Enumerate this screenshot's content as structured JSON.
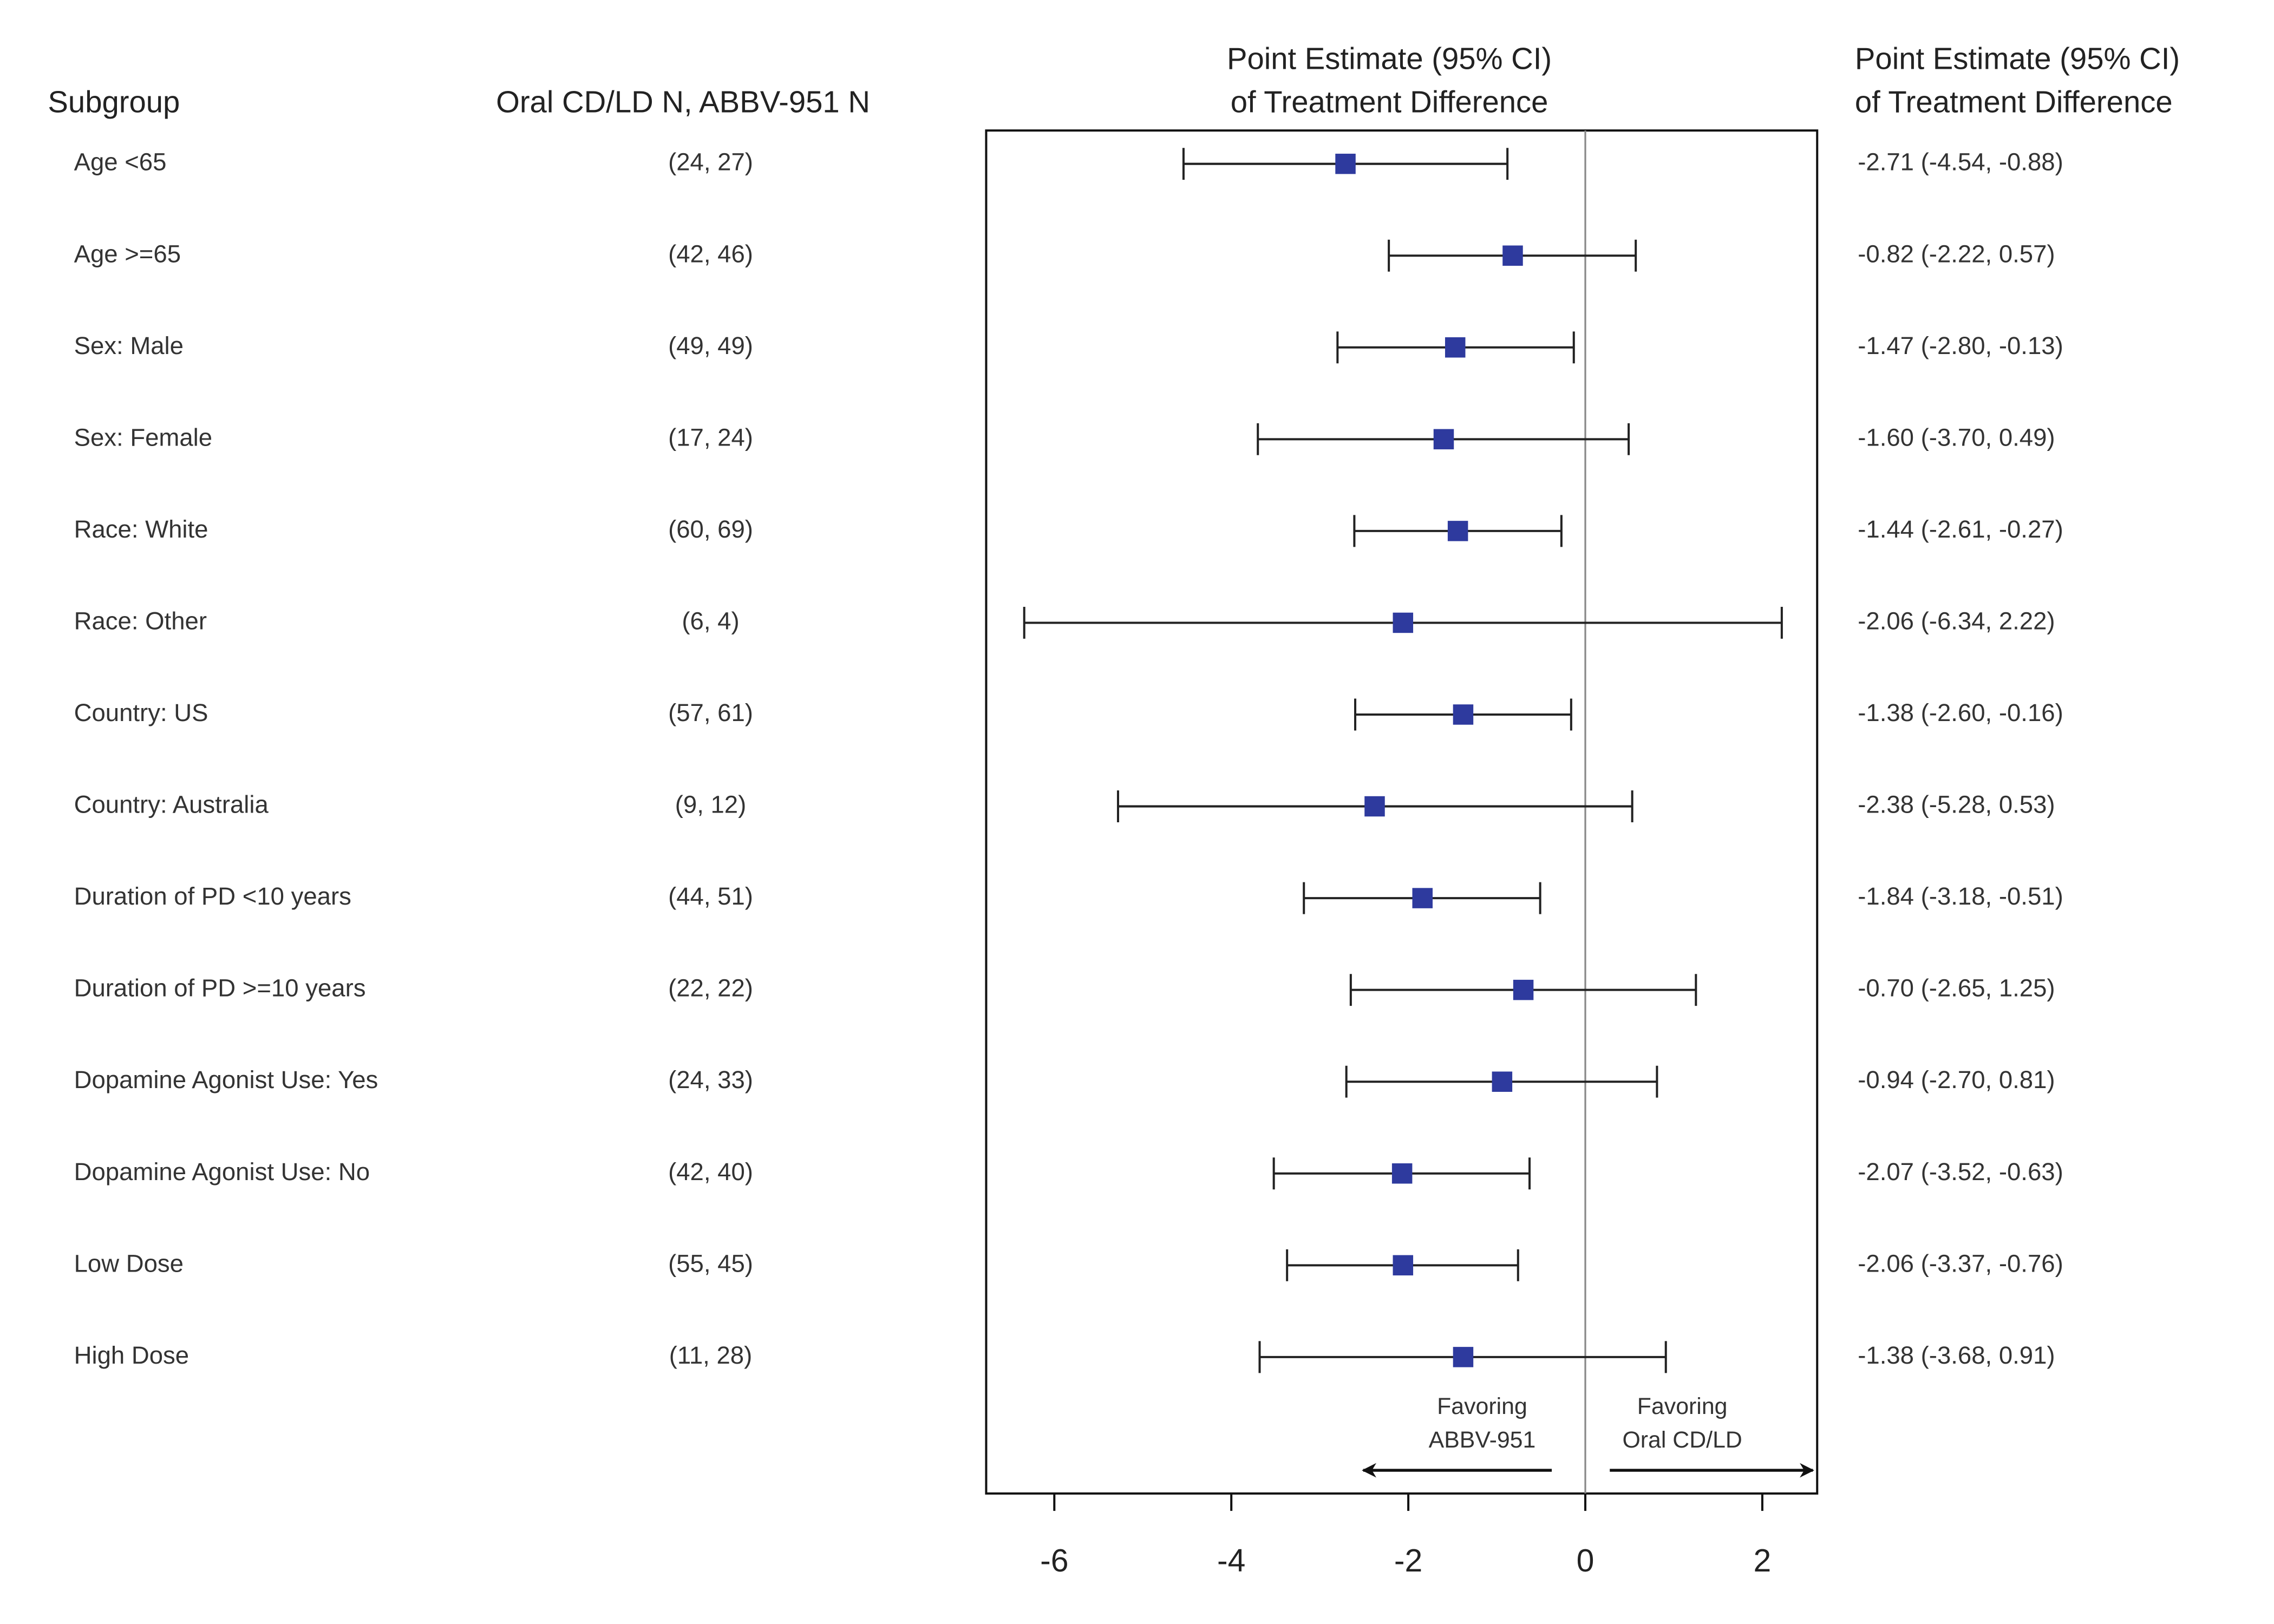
{
  "chart_data": {
    "type": "forest",
    "headers": {
      "subgroup": "Subgroup",
      "n": "Oral CD/LD N, ABBV-951 N",
      "plot": [
        "Point Estimate (95% CI)",
        "of Treatment Difference"
      ],
      "estimate": [
        "Point Estimate (95% CI)",
        "of Treatment Difference"
      ]
    },
    "categories": [
      "Age <65",
      "Age >=65",
      "Sex: Male",
      "Sex: Female",
      "Race: White",
      "Race: Other",
      "Country: US",
      "Country: Australia",
      "Duration of PD <10 years",
      "Duration of PD >=10 years",
      "Dopamine Agonist Use: Yes",
      "Dopamine Agonist Use: No",
      "Low Dose",
      "High Dose"
    ],
    "n_labels": [
      "(24, 27)",
      "(42, 46)",
      "(49, 49)",
      "(17, 24)",
      "(60, 69)",
      "(6, 4)",
      "(57, 61)",
      "(9, 12)",
      "(44, 51)",
      "(22, 22)",
      "(24, 33)",
      "(42, 40)",
      "(55, 45)",
      "(11, 28)"
    ],
    "values": [
      -2.71,
      -0.82,
      -1.47,
      -1.6,
      -1.44,
      -2.06,
      -1.38,
      -2.38,
      -1.84,
      -0.7,
      -0.94,
      -2.07,
      -2.06,
      -1.38
    ],
    "lower": [
      -4.54,
      -2.22,
      -2.8,
      -3.7,
      -2.61,
      -6.34,
      -2.6,
      -5.28,
      -3.18,
      -2.65,
      -2.7,
      -3.52,
      -3.37,
      -3.68
    ],
    "upper": [
      -0.88,
      0.57,
      -0.13,
      0.49,
      -0.27,
      2.22,
      -0.16,
      0.53,
      -0.51,
      1.25,
      0.81,
      -0.63,
      -0.76,
      0.91
    ],
    "value_labels": [
      "-2.71 (-4.54, -0.88)",
      "-0.82 (-2.22, 0.57)",
      "-1.47 (-2.80, -0.13)",
      "-1.60 (-3.70, 0.49)",
      "-1.44 (-2.61, -0.27)",
      "-2.06 (-6.34, 2.22)",
      "-1.38 (-2.60, -0.16)",
      "-2.38 (-5.28, 0.53)",
      "-1.84 (-3.18, -0.51)",
      "-0.70 (-2.65, 1.25)",
      "-0.94 (-2.70, 0.81)",
      "-2.07 (-3.52, -0.63)",
      "-2.06 (-3.37, -0.76)",
      "-1.38 (-3.68, 0.91)"
    ],
    "color": "#2e3a9e",
    "xlim": [
      -6.77,
      2.62
    ],
    "xticks": [
      -6,
      -4,
      -2,
      0,
      2
    ],
    "ref_line": 0,
    "favoring": {
      "left": [
        "Favoring",
        "ABBV-951"
      ],
      "right": [
        "Favoring",
        "Oral CD/LD"
      ]
    }
  }
}
